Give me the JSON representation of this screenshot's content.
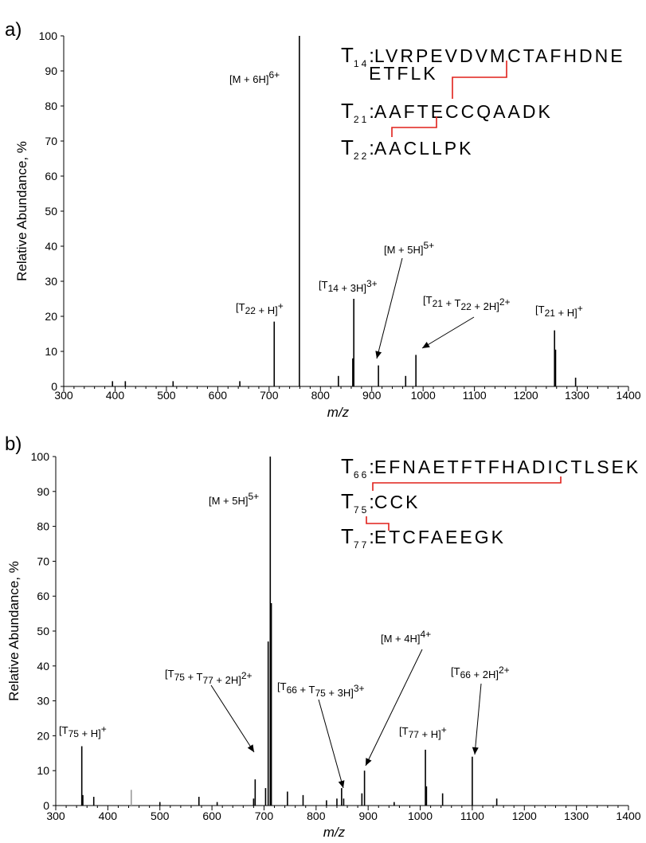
{
  "chart_data": [
    {
      "type": "bar",
      "panel_label": "a)",
      "xlabel": "m/z",
      "ylabel": "Relative Abundance, %",
      "xlim": [
        300,
        1400
      ],
      "ylim": [
        0,
        100
      ],
      "xticks": [
        300,
        400,
        500,
        600,
        700,
        800,
        900,
        1000,
        1100,
        1200,
        1300,
        1400
      ],
      "yticks": [
        0,
        10,
        20,
        30,
        40,
        50,
        60,
        70,
        80,
        90,
        100
      ],
      "peaks": [
        {
          "x": 395,
          "y": 1.5
        },
        {
          "x": 420,
          "y": 1.5
        },
        {
          "x": 513,
          "y": 1.5
        },
        {
          "x": 643,
          "y": 1.5
        },
        {
          "x": 710,
          "y": 18.5
        },
        {
          "x": 759,
          "y": 100
        },
        {
          "x": 835,
          "y": 3
        },
        {
          "x": 863,
          "y": 8
        },
        {
          "x": 865,
          "y": 25
        },
        {
          "x": 913,
          "y": 6
        },
        {
          "x": 966,
          "y": 3
        },
        {
          "x": 986,
          "y": 9
        },
        {
          "x": 1256,
          "y": 16
        },
        {
          "x": 1258,
          "y": 10.5
        },
        {
          "x": 1297,
          "y": 2.5
        }
      ],
      "annotations": [
        {
          "main": "[M + 6H]",
          "sub": "",
          "sup": "6+",
          "after": "",
          "sup2": ""
        },
        {
          "main": "[T",
          "sub": "22",
          "after": " + H]",
          "sup2": "+"
        },
        {
          "main": "[T",
          "sub": "14",
          "after": " + 3H]",
          "sup2": "3+"
        },
        {
          "main": "[M + 5H]",
          "sub": "",
          "after": "",
          "sup2": "5+"
        },
        {
          "main": "[T",
          "sub": "21",
          "after": " + T",
          "sub2": "22",
          "after2": " + 2H]",
          "sup2": "2+"
        },
        {
          "main": "[T",
          "sub": "21",
          "after": " + H]",
          "sup2": "+"
        }
      ],
      "sequences": [
        {
          "t": "T",
          "sub": "14",
          "seq": "LVRPEVDVMCTAFHDNE",
          "cont": "ETFLK"
        },
        {
          "t": "T",
          "sub": "21",
          "seq": "AAFTECCQAADK",
          "cont": ""
        },
        {
          "t": "T",
          "sub": "22",
          "seq": "AACLLPK",
          "cont": ""
        }
      ]
    },
    {
      "type": "bar",
      "panel_label": "b)",
      "xlabel": "m/z",
      "ylabel": "Relative Abundance, %",
      "xlim": [
        300,
        1400
      ],
      "ylim": [
        0,
        100
      ],
      "xticks": [
        300,
        400,
        500,
        600,
        700,
        800,
        900,
        1000,
        1100,
        1200,
        1300,
        1400
      ],
      "yticks": [
        0,
        10,
        20,
        30,
        40,
        50,
        60,
        70,
        80,
        90,
        100
      ],
      "peaks": [
        {
          "x": 350,
          "y": 17
        },
        {
          "x": 352,
          "y": 3
        },
        {
          "x": 373,
          "y": 2.5
        },
        {
          "x": 445,
          "y": 4.5
        },
        {
          "x": 500,
          "y": 1
        },
        {
          "x": 575,
          "y": 2.5
        },
        {
          "x": 610,
          "y": 1
        },
        {
          "x": 680,
          "y": 2
        },
        {
          "x": 683,
          "y": 7.5
        },
        {
          "x": 703,
          "y": 5
        },
        {
          "x": 708,
          "y": 47
        },
        {
          "x": 712,
          "y": 100
        },
        {
          "x": 714,
          "y": 58
        },
        {
          "x": 745,
          "y": 4
        },
        {
          "x": 775,
          "y": 3
        },
        {
          "x": 820,
          "y": 1.5
        },
        {
          "x": 840,
          "y": 2
        },
        {
          "x": 849,
          "y": 5
        },
        {
          "x": 853,
          "y": 2
        },
        {
          "x": 888,
          "y": 3.5
        },
        {
          "x": 893,
          "y": 10
        },
        {
          "x": 950,
          "y": 1
        },
        {
          "x": 1010,
          "y": 16
        },
        {
          "x": 1012,
          "y": 5.5
        },
        {
          "x": 1043,
          "y": 3.5
        },
        {
          "x": 1100,
          "y": 14
        },
        {
          "x": 1147,
          "y": 2
        }
      ],
      "annotations": [
        {
          "main": "[M + 5H]",
          "sub": "",
          "after": "",
          "sup2": "5+"
        },
        {
          "main": "[T",
          "sub": "75",
          "after": " + H]",
          "sup2": "+"
        },
        {
          "main": "[T",
          "sub": "75",
          "after": " + T",
          "sub2": "77",
          "after2": " + 2H]",
          "sup2": "2+"
        },
        {
          "main": "[T",
          "sub": "66",
          "after": " + T",
          "sub2": "75",
          "after2": " + 3H]",
          "sup2": "3+"
        },
        {
          "main": "[M + 4H]",
          "sub": "",
          "after": "",
          "sup2": "4+"
        },
        {
          "main": "[T",
          "sub": "77",
          "after": " + H]",
          "sup2": "+"
        },
        {
          "main": "[T",
          "sub": "66",
          "after": " + 2H]",
          "sup2": "2+"
        }
      ],
      "sequences": [
        {
          "t": "T",
          "sub": "66",
          "seq": "EFNAETFTFHADICTLSEK",
          "cont": ""
        },
        {
          "t": "T",
          "sub": "75",
          "seq": "CCK",
          "cont": ""
        },
        {
          "t": "T",
          "sub": "77",
          "seq": "ETCFAEEGK",
          "cont": ""
        }
      ]
    }
  ],
  "colors": {
    "axis": "#000000",
    "peak": "#000000",
    "peak_faint": "#9a9a9a",
    "disulfide": "#e0201a"
  }
}
